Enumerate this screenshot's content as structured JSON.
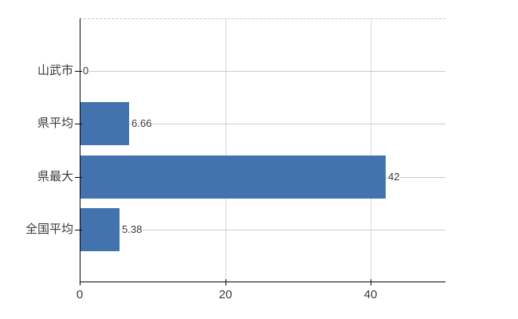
{
  "chart_data": {
    "type": "bar",
    "orientation": "horizontal",
    "title": "",
    "xlabel": "",
    "ylabel": "",
    "categories": [
      "山武市",
      "県平均",
      "県最大",
      "全国平均"
    ],
    "values": [
      0,
      6.66,
      42,
      5.38
    ],
    "data_labels": [
      "0",
      "6.66",
      "42",
      "5.38"
    ],
    "x_tick_labels": [
      "0",
      "20",
      "40"
    ],
    "x_tick_values": [
      0,
      20,
      40
    ],
    "xlim": [
      0,
      50.3
    ],
    "grid": {
      "horizontal": true,
      "vertical": true,
      "top_border": "dashed"
    },
    "legend_position": "none"
  },
  "colors": {
    "bar": "#4273ae",
    "h_grid": "#c3d2c3",
    "v_grid": "#dadada",
    "axis": "#0c0c0c",
    "top_border": "#c9c9c9",
    "text": "#3a3a3a",
    "background": "#ffffff"
  }
}
